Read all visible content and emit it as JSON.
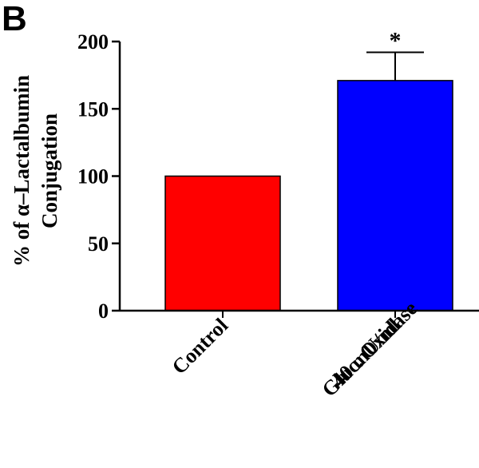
{
  "panel_label": "B",
  "chart_data": {
    "type": "bar",
    "ylabel_lines": [
      "% of α–Lactalbumin",
      "Conjugation"
    ],
    "categories": [
      {
        "lines": [
          "Control"
        ]
      },
      {
        "lines": [
          "Gluc. Oxidase",
          "40 mU/ml"
        ]
      }
    ],
    "values": [
      100,
      171
    ],
    "errors": [
      0,
      21
    ],
    "colors": [
      "#ff0000",
      "#0000ff"
    ],
    "annotations": [
      "",
      "*"
    ],
    "yticks": [
      0,
      50,
      100,
      150,
      200
    ],
    "ylim": [
      0,
      200
    ],
    "grid": false
  }
}
